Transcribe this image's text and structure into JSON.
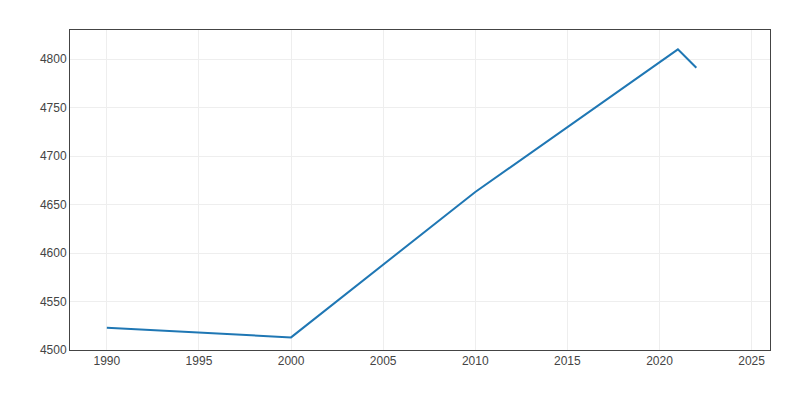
{
  "chart_data": {
    "type": "line",
    "x": [
      1990,
      2000,
      2010,
      2020,
      2021,
      2022
    ],
    "values": [
      4523,
      4513,
      4663,
      4797,
      4810,
      4791
    ],
    "xlim": [
      1988,
      2026
    ],
    "xticks": [
      1990,
      1995,
      2000,
      2005,
      2010,
      2015,
      2020,
      2025
    ],
    "ylim": [
      4500,
      4830
    ],
    "yticks": [
      4500,
      4550,
      4600,
      4650,
      4700,
      4750,
      4800
    ],
    "grid": true
  }
}
